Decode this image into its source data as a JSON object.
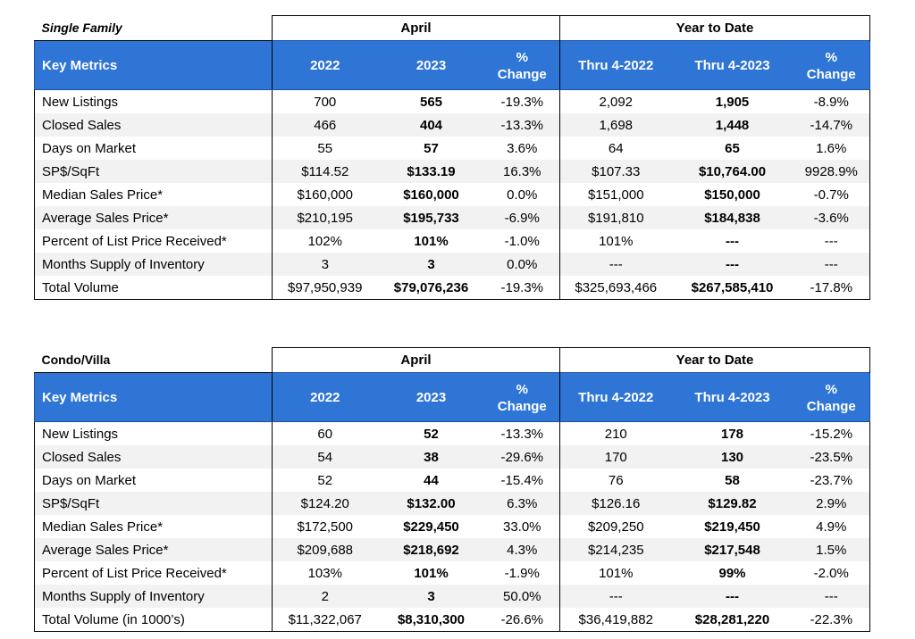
{
  "single_family": {
    "section_label": "Single Family",
    "april_label": "April",
    "ytd_label": "Year to Date",
    "headers": {
      "key_metrics": "Key Metrics",
      "y2022": "2022",
      "y2023": "2023",
      "pct_line1": "%",
      "pct_line2": "Change",
      "thru2022": "Thru 4-2022",
      "thru2023": "Thru 4-2023",
      "ytd_pct_line1": "%",
      "ytd_pct_line2": "Change"
    },
    "rows": [
      {
        "label": "New Listings",
        "v2022": "700",
        "v2023": "565",
        "pct": "-19.3%",
        "ytd2022": "2,092",
        "ytd2023": "1,905",
        "ytd_pct": "-8.9%"
      },
      {
        "label": "Closed Sales",
        "v2022": "466",
        "v2023": "404",
        "pct": "-13.3%",
        "ytd2022": "1,698",
        "ytd2023": "1,448",
        "ytd_pct": "-14.7%"
      },
      {
        "label": "Days on Market",
        "v2022": "55",
        "v2023": "57",
        "pct": "3.6%",
        "ytd2022": "64",
        "ytd2023": "65",
        "ytd_pct": "1.6%"
      },
      {
        "label": "SP$/SqFt",
        "v2022": "$114.52",
        "v2023": "$133.19",
        "pct": "16.3%",
        "ytd2022": "$107.33",
        "ytd2023": "$10,764.00",
        "ytd_pct": "9928.9%"
      },
      {
        "label": "Median Sales Price*",
        "v2022": "$160,000",
        "v2023": "$160,000",
        "pct": "0.0%",
        "ytd2022": "$151,000",
        "ytd2023": "$150,000",
        "ytd_pct": "-0.7%"
      },
      {
        "label": "Average Sales Price*",
        "v2022": "$210,195",
        "v2023": "$195,733",
        "pct": "-6.9%",
        "ytd2022": "$191,810",
        "ytd2023": "$184,838",
        "ytd_pct": "-3.6%"
      },
      {
        "label": "Percent of List Price Received*",
        "v2022": "102%",
        "v2023": "101%",
        "pct": "-1.0%",
        "ytd2022": "101%",
        "ytd2023": "---",
        "ytd_pct": "---"
      },
      {
        "label": "Months Supply of Inventory",
        "v2022": "3",
        "v2023": "3",
        "pct": "0.0%",
        "ytd2022": "---",
        "ytd2023": "---",
        "ytd_pct": "---"
      },
      {
        "label": "Total Volume",
        "v2022": "$97,950,939",
        "v2023": "$79,076,236",
        "pct": "-19.3%",
        "ytd2022": "$325,693,466",
        "ytd2023": "$267,585,410",
        "ytd_pct": "-17.8%"
      }
    ]
  },
  "condo_villa": {
    "section_label": "Condo/Villa",
    "april_label": "April",
    "ytd_label": "Year to Date",
    "headers": {
      "key_metrics": "Key Metrics",
      "y2022": "2022",
      "y2023": "2023",
      "pct_line1": "%",
      "pct_line2": "Change",
      "thru2022": "Thru 4-2022",
      "thru2023": "Thru 4-2023",
      "ytd_pct_line1": "%",
      "ytd_pct_line2": "Change"
    },
    "rows": [
      {
        "label": "New Listings",
        "v2022": "60",
        "v2023": "52",
        "pct": "-13.3%",
        "ytd2022": "210",
        "ytd2023": "178",
        "ytd_pct": "-15.2%"
      },
      {
        "label": "Closed Sales",
        "v2022": "54",
        "v2023": "38",
        "pct": "-29.6%",
        "ytd2022": "170",
        "ytd2023": "130",
        "ytd_pct": "-23.5%"
      },
      {
        "label": "Days on Market",
        "v2022": "52",
        "v2023": "44",
        "pct": "-15.4%",
        "ytd2022": "76",
        "ytd2023": "58",
        "ytd_pct": "-23.7%"
      },
      {
        "label": "SP$/SqFt",
        "v2022": "$124.20",
        "v2023": "$132.00",
        "pct": "6.3%",
        "ytd2022": "$126.16",
        "ytd2023": "$129.82",
        "ytd_pct": "2.9%"
      },
      {
        "label": "Median Sales Price*",
        "v2022": "$172,500",
        "v2023": "$229,450",
        "pct": "33.0%",
        "ytd2022": "$209,250",
        "ytd2023": "$219,450",
        "ytd_pct": "4.9%"
      },
      {
        "label": "Average Sales Price*",
        "v2022": "$209,688",
        "v2023": "$218,692",
        "pct": "4.3%",
        "ytd2022": "$214,235",
        "ytd2023": "$217,548",
        "ytd_pct": "1.5%"
      },
      {
        "label": "Percent of List Price Received*",
        "v2022": "103%",
        "v2023": "101%",
        "pct": "-1.9%",
        "ytd2022": "101%",
        "ytd2023": "99%",
        "ytd_pct": "-2.0%"
      },
      {
        "label": "Months Supply of Inventory",
        "v2022": "2",
        "v2023": "3",
        "pct": "50.0%",
        "ytd2022": "---",
        "ytd2023": "---",
        "ytd_pct": "---"
      },
      {
        "label": "Total Volume (in 1000’s)",
        "v2022": "$11,322,067",
        "v2023": "$8,310,300",
        "pct": "-26.6%",
        "ytd2022": "$36,419,882",
        "ytd2023": "$28,281,220",
        "ytd_pct": "-22.3%"
      }
    ]
  }
}
